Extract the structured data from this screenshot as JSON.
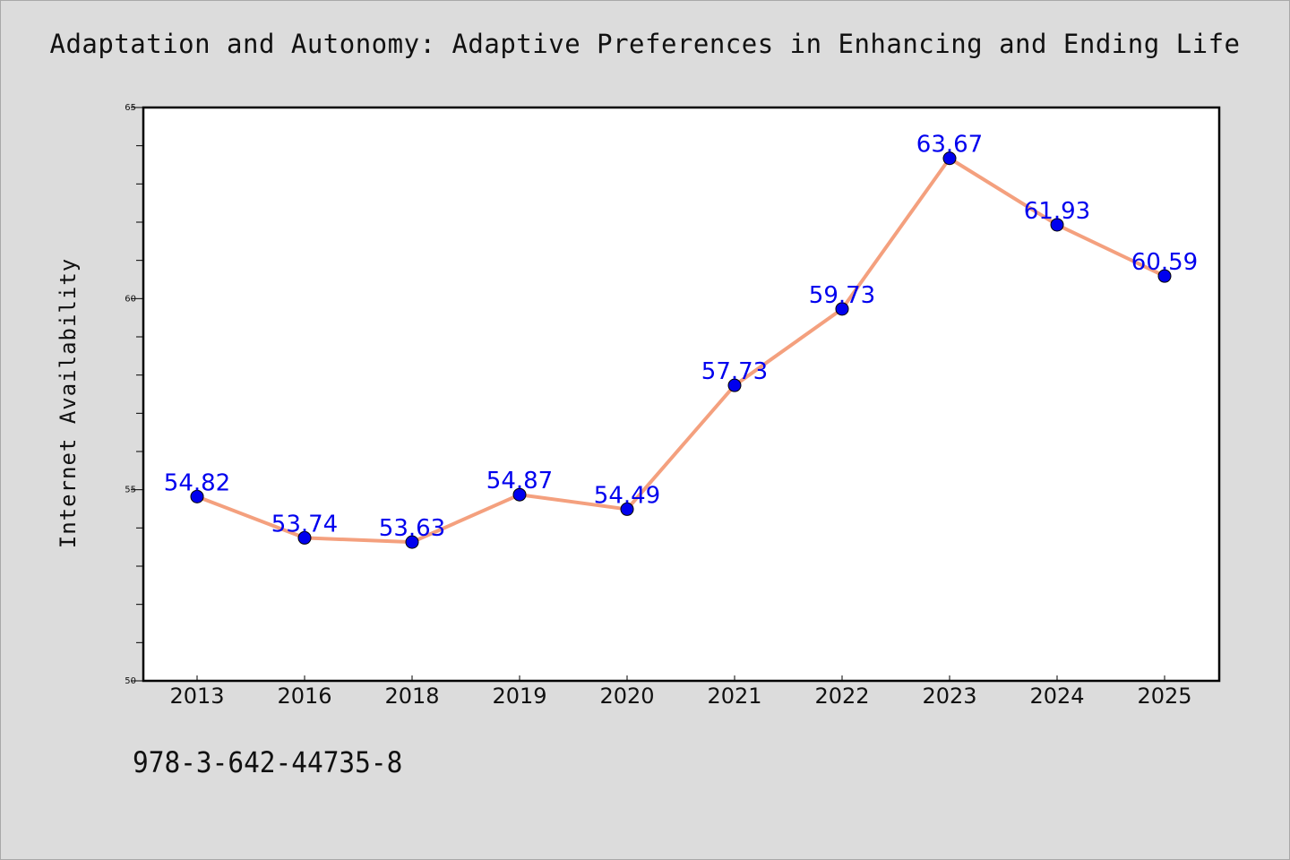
{
  "chart_data": {
    "type": "line",
    "title": "Adaptation and Autonomy: Adaptive Preferences in Enhancing and Ending Life",
    "xlabel": "",
    "ylabel": "Internet Availability",
    "categories": [
      "2013",
      "2016",
      "2018",
      "2019",
      "2020",
      "2021",
      "2022",
      "2023",
      "2024",
      "2025"
    ],
    "series": [
      {
        "values": [
          54.82,
          53.74,
          53.63,
          54.87,
          54.49,
          57.73,
          59.73,
          63.67,
          61.93,
          60.59
        ],
        "line_color": "#f4a07e",
        "marker_color": "#0000ee"
      }
    ],
    "data_labels": [
      "54.82",
      "53.74",
      "53.63",
      "54.87",
      "54.49",
      "57.73",
      "59.73",
      "63.67",
      "61.93",
      "60.59"
    ],
    "ylim": [
      50,
      65
    ],
    "y_ticks": [
      "50",
      "55",
      "60",
      "65"
    ],
    "grid": false,
    "legend": "none"
  },
  "footer": {
    "code": "978-3-642-44735-8"
  }
}
